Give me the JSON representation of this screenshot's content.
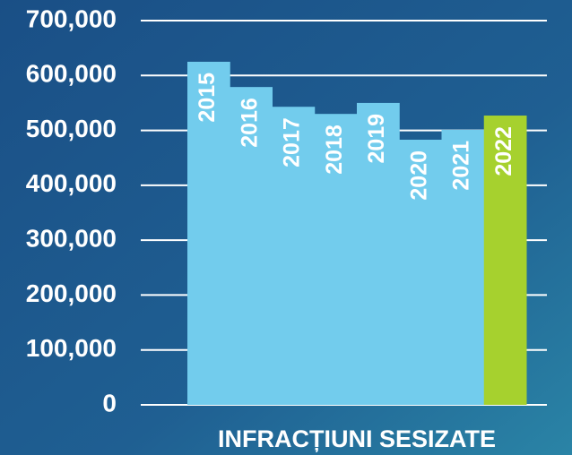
{
  "chart_data": {
    "type": "bar",
    "x_label": "INFRACȚIUNI SESIZATE",
    "categories": [
      "2015",
      "2016",
      "2017",
      "2018",
      "2019",
      "2020",
      "2021",
      "2022"
    ],
    "values": [
      625000,
      579000,
      543000,
      530000,
      550000,
      483000,
      501000,
      527000
    ],
    "colors": [
      "#72cced",
      "#72cced",
      "#72cced",
      "#72cced",
      "#72cced",
      "#72cced",
      "#72cced",
      "#a6d12e"
    ],
    "ylim": [
      0,
      700000
    ],
    "yticks": [
      0,
      {
        "value": 100000,
        "label": "100,000"
      },
      {
        "value": 200000,
        "label": "200,000"
      },
      {
        "value": 300000,
        "label": "300,000"
      },
      {
        "value": 400000,
        "label": "400,000"
      },
      {
        "value": 500000,
        "label": "500,000"
      },
      {
        "value": 600000,
        "label": "600,000"
      },
      {
        "value": 700000,
        "label": "700,000"
      }
    ],
    "grid": true
  }
}
